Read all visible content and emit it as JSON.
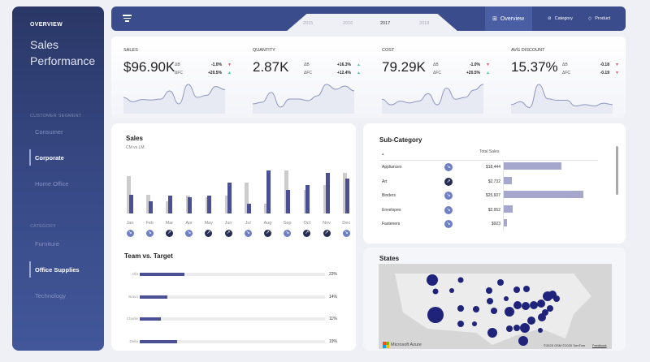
{
  "sidebar": {
    "overview": "OVERVIEW",
    "title_line1": "Sales",
    "title_line2": "Performance",
    "segment_header": "CUSTOMER SEGMENT",
    "segments": [
      {
        "label": "Consumer",
        "active": false
      },
      {
        "label": "Corporate",
        "active": true
      },
      {
        "label": "Home Office",
        "active": false
      }
    ],
    "category_header": "CATEGORY",
    "categories": [
      {
        "label": "Furniture",
        "active": false
      },
      {
        "label": "Office Supplies",
        "active": true
      },
      {
        "label": "Technology",
        "active": false
      }
    ]
  },
  "topbar": {
    "years": [
      "2015",
      "2016",
      "2017",
      "2018"
    ],
    "active_year": "2017",
    "tabs": [
      {
        "label": "Overview",
        "icon": "grid-icon",
        "active": true
      },
      {
        "label": "Category",
        "icon": "link-icon",
        "active": false
      },
      {
        "label": "Product",
        "icon": "tag-icon",
        "active": false
      }
    ]
  },
  "kpis": [
    {
      "label": "SALES",
      "value": "$96.90K",
      "d1_label": "ΔB",
      "d1": "-1.0%",
      "d1_dir": "down",
      "d2_label": "ΔFC",
      "d2": "+20.5%",
      "d2_dir": "up",
      "spark": [
        3,
        2,
        2.5,
        2.4,
        2.6,
        4.5,
        1.5,
        6,
        3,
        3.5,
        5.5,
        4.8
      ]
    },
    {
      "label": "QUANTITY",
      "value": "2.87K",
      "d1_label": "ΔB",
      "d1": "+16.3%",
      "d1_dir": "up",
      "d2_label": "ΔFC",
      "d2": "+12.4%",
      "d2_dir": "up",
      "spark": [
        2,
        2.5,
        5.5,
        1,
        3.5,
        3.5,
        3,
        4.5,
        8,
        6.5,
        7.5,
        6
      ]
    },
    {
      "label": "COST",
      "value": "79.29K",
      "d1_label": "ΔB",
      "d1": "-1.0%",
      "d1_dir": "down",
      "d2_label": "ΔFC",
      "d2": "+20.5%",
      "d2_dir": "up",
      "spark": [
        3,
        1.5,
        2.5,
        2,
        2.5,
        4.5,
        1.5,
        6,
        3,
        3.5,
        5.5,
        7
      ]
    },
    {
      "label": "AVG DISCOUNT",
      "value": "15.37%",
      "d1_label": "ΔB",
      "d1": "-0.18",
      "d1_dir": "down",
      "d2_label": "ΔFC",
      "d2": "-0.19",
      "d2_dir": "down",
      "spark": [
        2,
        3,
        1,
        9,
        4,
        3.5,
        3.5,
        1.5,
        2,
        1.5,
        2.5,
        2
      ]
    }
  ],
  "colors": {
    "up": "#3ec89a",
    "down": "#e0546b",
    "cm": "#4b4f93",
    "lm": "#cccccc",
    "accent": "#3b4c8d"
  },
  "sales_chart": {
    "title": "Sales",
    "subtitle": "CM vs LM"
  },
  "chart_data": {
    "type": "bar",
    "categories": [
      "Jan",
      "Feb",
      "Mar",
      "Apr",
      "May",
      "Jun",
      "Jul",
      "Aug",
      "Sep",
      "Oct",
      "Nov",
      "Dec"
    ],
    "series": [
      {
        "key": "LM",
        "values": [
          138,
          70,
          46,
          67,
          60,
          67,
          114,
          37,
          160,
          88,
          104,
          150
        ]
      },
      {
        "key": "CM",
        "values": [
          70,
          46,
          67,
          60,
          67,
          114,
          37,
          160,
          88,
          104,
          150,
          128
        ]
      }
    ],
    "trend": [
      "down",
      "down",
      "up",
      "down",
      "up",
      "up",
      "down",
      "up",
      "down",
      "up",
      "up",
      "down"
    ],
    "ylim": [
      0,
      165
    ]
  },
  "team": {
    "title": "Team vs. Target",
    "rows": [
      {
        "name": "Alfa",
        "pct": 23,
        "label": "23%"
      },
      {
        "name": "Bravo",
        "pct": 14,
        "label": "14%"
      },
      {
        "name": "Charlie",
        "pct": 11,
        "label": "11%"
      },
      {
        "name": "Delta",
        "pct": 19,
        "label": "19%"
      }
    ]
  },
  "subcategory": {
    "title": "Sub-Category",
    "sort_icon": "▴",
    "column": "Total Sales",
    "rows": [
      {
        "name": "Appliances",
        "trend": "down",
        "amount": "$18,444",
        "value": 18444
      },
      {
        "name": "Art",
        "trend": "up",
        "amount": "$2,732",
        "value": 2732
      },
      {
        "name": "Binders",
        "trend": "down",
        "amount": "$25,607",
        "value": 25607
      },
      {
        "name": "Envelopes",
        "trend": "down",
        "amount": "$2,952",
        "value": 2952
      },
      {
        "name": "Fasteners",
        "trend": "down",
        "amount": "$923",
        "value": 923
      }
    ]
  },
  "states": {
    "title": "States",
    "brand": "Microsoft Azure",
    "copyright": "©2025 OSM ©2025 TomTom",
    "feedback": "Feedback"
  }
}
